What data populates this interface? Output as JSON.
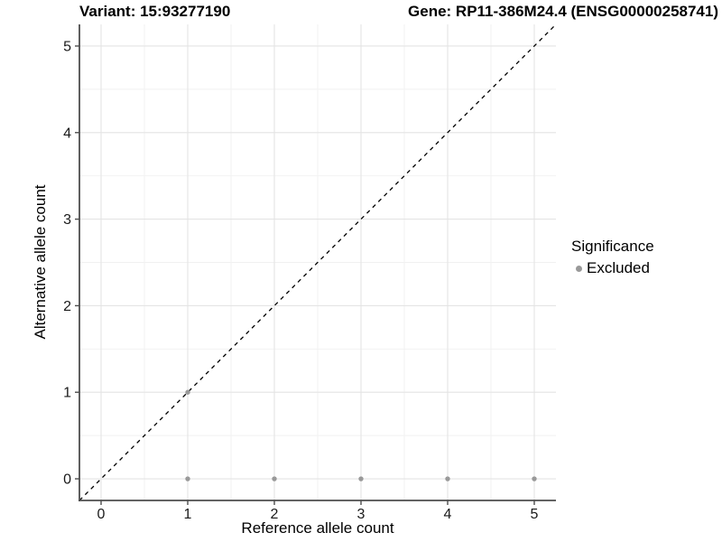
{
  "header": {
    "variant_title": "Variant: 15:93277190",
    "gene_title": "Gene: RP11-386M24.4 (ENSG00000258741)"
  },
  "chart_data": {
    "type": "scatter",
    "x": {
      "label": "Reference allele count",
      "tick_labels": [
        "0",
        "1",
        "2",
        "3",
        "4",
        "5"
      ],
      "tick_values": [
        0,
        1,
        2,
        3,
        4,
        5
      ],
      "range": [
        -0.25,
        5.25
      ]
    },
    "y": {
      "label": "Alternative allele count",
      "tick_labels": [
        "0",
        "1",
        "2",
        "3",
        "4",
        "5"
      ],
      "tick_values": [
        0,
        1,
        2,
        3,
        4,
        5
      ],
      "range": [
        -0.25,
        5.25
      ]
    },
    "series": [
      {
        "name": "Excluded",
        "color": "#999999",
        "points": [
          [
            1,
            0
          ],
          [
            2,
            0
          ],
          [
            3,
            0
          ],
          [
            4,
            0
          ],
          [
            5,
            0
          ],
          [
            1,
            1
          ]
        ]
      }
    ],
    "identity_line": {
      "style": "dashed",
      "color": "#000000",
      "from": [
        -0.25,
        -0.25
      ],
      "to": [
        5.25,
        5.25
      ]
    },
    "legend": {
      "title": "Significance",
      "position": "right",
      "entries": [
        {
          "label": "Excluded",
          "color": "#999999"
        }
      ]
    },
    "grid": {
      "major": true,
      "minor": true
    },
    "colors": {
      "grid_major": "#e4e4e4",
      "grid_minor": "#f1f1f1",
      "axis_line": "#4d4d4d",
      "tick_text": "#1a1a1a",
      "background": "#ffffff"
    }
  }
}
